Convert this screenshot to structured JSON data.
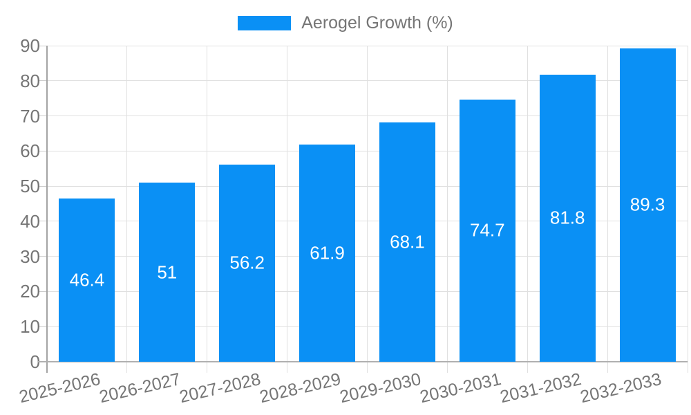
{
  "chart_data": {
    "type": "bar",
    "title": "",
    "legend": {
      "label": "Aerogel Growth (%)",
      "position": "top-center"
    },
    "categories": [
      "2025-2026",
      "2026-2027",
      "2027-2028",
      "2028-2029",
      "2029-2030",
      "2030-2031",
      "2031-2032",
      "2032-2033"
    ],
    "series": [
      {
        "name": "Aerogel Growth (%)",
        "values": [
          46.4,
          51,
          56.2,
          61.9,
          68.1,
          74.7,
          81.8,
          89.3
        ]
      }
    ],
    "value_labels": [
      "46.4",
      "51",
      "56.2",
      "61.9",
      "68.1",
      "74.7",
      "81.8",
      "89.3"
    ],
    "xlabel": "",
    "ylabel": "",
    "ylim": [
      0,
      90
    ],
    "yticks": [
      0,
      10,
      20,
      30,
      40,
      50,
      60,
      70,
      80,
      90
    ],
    "grid": true,
    "x_label_rotation_deg": -13,
    "colors": {
      "bar": "#0a90f5",
      "axis_text": "#757575",
      "value_label": "#ffffff",
      "gridline": "#e0e0e0",
      "tick": "#cccccc",
      "y_axis_line": "#a3a3a3",
      "x_axis_line": "#b0b0b0",
      "background": "#ffffff"
    }
  }
}
